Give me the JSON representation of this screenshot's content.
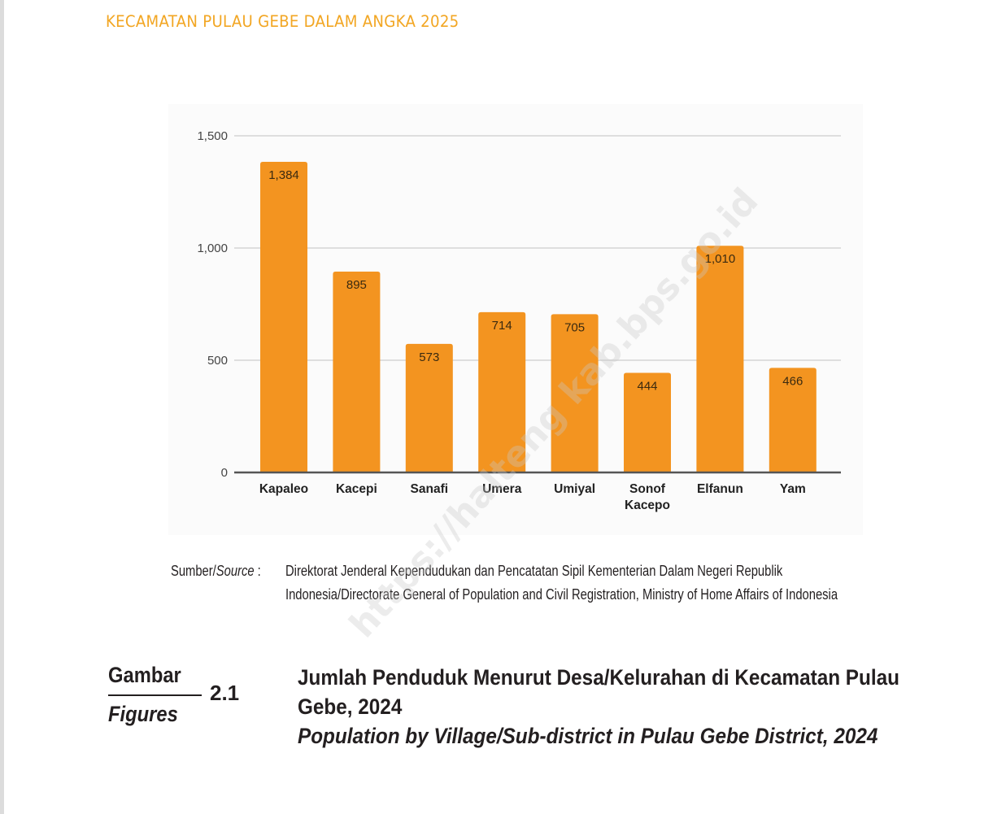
{
  "header": {
    "running_title": "KECAMATAN PULAU GEBE DALAM ANGKA 2025"
  },
  "colors": {
    "header_text": "#f2a623",
    "bar_fill": "#f39420",
    "grid": "#dedede",
    "axis": "#555555",
    "text": "#231f20"
  },
  "chart_data": {
    "type": "bar",
    "title": "",
    "xlabel": "",
    "ylabel": "",
    "categories": [
      "Kapaleo",
      "Kacepi",
      "Sanafi",
      "Umera",
      "Umiyal",
      "Sonof Kacepo",
      "Elfanun",
      "Yam"
    ],
    "category_lines": [
      [
        "Kapaleo"
      ],
      [
        "Kacepi"
      ],
      [
        "Sanafi"
      ],
      [
        "Umera"
      ],
      [
        "Umiyal"
      ],
      [
        "Sonof",
        "Kacepo"
      ],
      [
        "Elfanun"
      ],
      [
        "Yam"
      ]
    ],
    "values": [
      1384,
      895,
      573,
      714,
      705,
      444,
      1010,
      466
    ],
    "value_labels": [
      "1,384",
      "895",
      "573",
      "714",
      "705",
      "444",
      "1,010",
      "466"
    ],
    "ylim": [
      0,
      1500
    ],
    "yticks": [
      0,
      500,
      1000,
      1500
    ],
    "ytick_labels": [
      "0",
      "500",
      "1,000",
      "1,500"
    ],
    "grid": true,
    "legend": "none"
  },
  "source": {
    "label_id": "Sumber/",
    "label_en": "Source",
    "label_sep": " :",
    "text": "Direktorat Jenderal Kependudukan dan Pencatatan Sipil Kementerian Dalam Negeri Republik Indonesia/Directorate General of Population and Civil Registration, Ministry of Home Affairs of Indonesia"
  },
  "figure": {
    "label_id": "Gambar",
    "label_en": "Figures",
    "number": "2.1",
    "title_id": "Jumlah Penduduk Menurut Desa/Kelurahan di Kecamatan Pulau Gebe, 2024",
    "title_en": "Population by Village/Sub-district in Pulau Gebe District, 2024"
  },
  "watermark": {
    "text": "https://halteng kab.bps.go.id"
  }
}
